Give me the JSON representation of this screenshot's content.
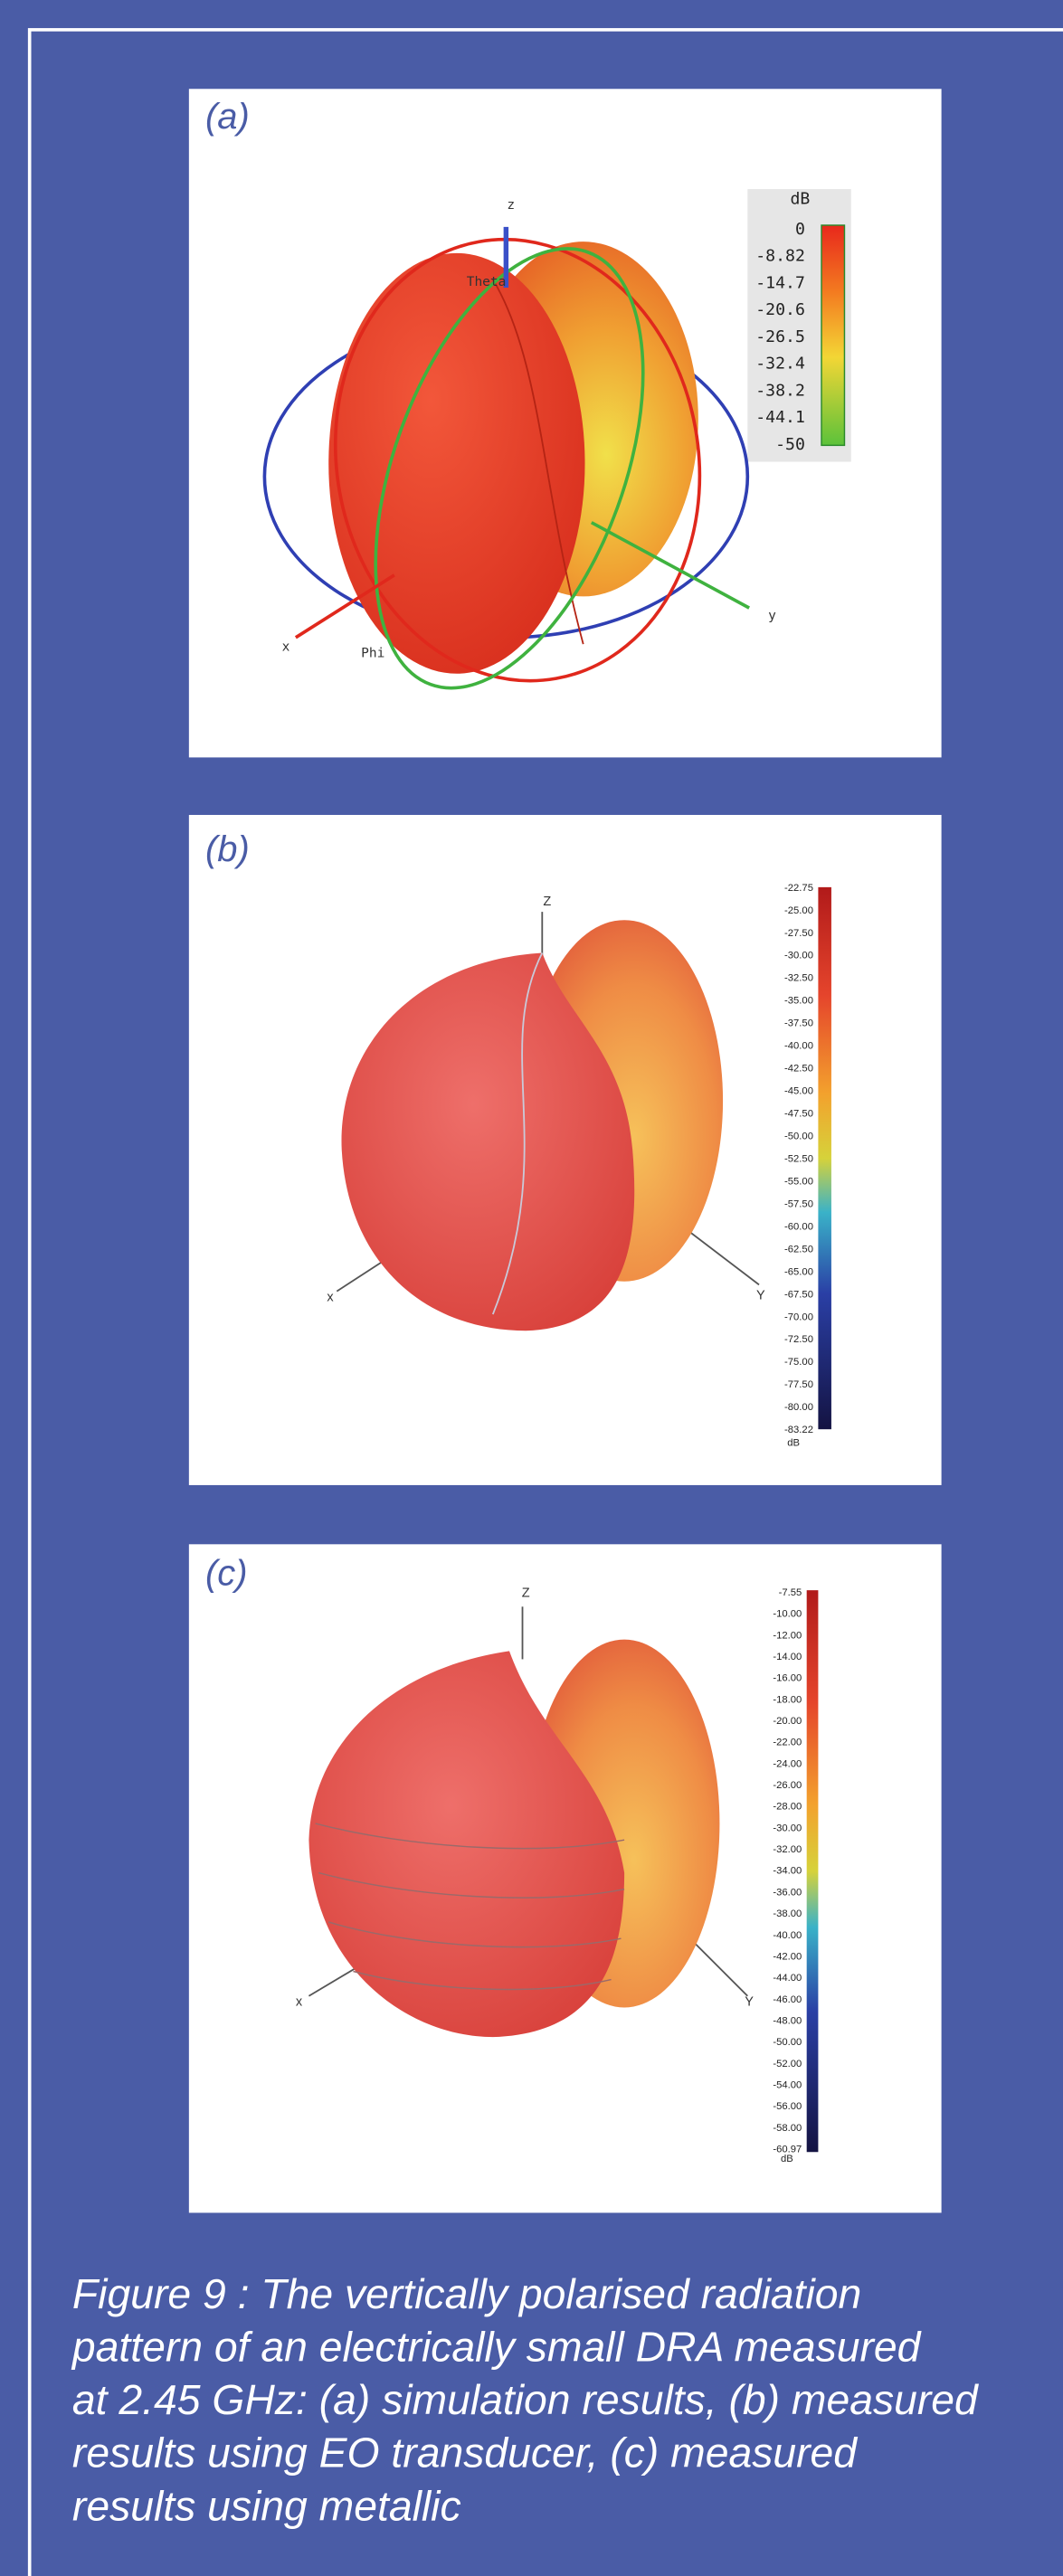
{
  "panels": [
    {
      "label": "(a)",
      "axis_z": "z",
      "axis_x": "x",
      "axis_y": "y",
      "theta": "Theta",
      "phi": "Phi",
      "colorbar_title": "dB",
      "colorbar_ticks": [
        "0",
        "-8.82",
        "-14.7",
        "-20.6",
        "-26.5",
        "-32.4",
        "-38.2",
        "-44.1",
        "-50"
      ]
    },
    {
      "label": "(b)",
      "axis_z": "Z",
      "axis_x": "x",
      "axis_y": "Y",
      "colorbar_title": "dB",
      "colorbar_ticks": [
        "-22.75",
        "-25.00",
        "-27.50",
        "-30.00",
        "-32.50",
        "-35.00",
        "-37.50",
        "-40.00",
        "-42.50",
        "-45.00",
        "-47.50",
        "-50.00",
        "-52.50",
        "-55.00",
        "-57.50",
        "-60.00",
        "-62.50",
        "-65.00",
        "-67.50",
        "-70.00",
        "-72.50",
        "-75.00",
        "-77.50",
        "-80.00",
        "-83.22"
      ]
    },
    {
      "label": "(c)",
      "axis_z": "Z",
      "axis_x": "x",
      "axis_y": "Y",
      "colorbar_title": "dB",
      "colorbar_ticks": [
        "-7.55",
        "-10.00",
        "-12.00",
        "-14.00",
        "-16.00",
        "-18.00",
        "-20.00",
        "-22.00",
        "-24.00",
        "-26.00",
        "-28.00",
        "-30.00",
        "-32.00",
        "-34.00",
        "-36.00",
        "-38.00",
        "-40.00",
        "-42.00",
        "-44.00",
        "-46.00",
        "-48.00",
        "-50.00",
        "-52.00",
        "-54.00",
        "-56.00",
        "-58.00",
        "-60.97"
      ]
    }
  ],
  "caption": {
    "lines": [
      "Figure 9 : The vertically polarised radiation",
      "pattern of an electrically small DRA measured",
      "at 2.45 GHz: (a) simulation results, (b) measured",
      "results using EO transducer, (c) measured",
      "results using metallic"
    ]
  }
}
